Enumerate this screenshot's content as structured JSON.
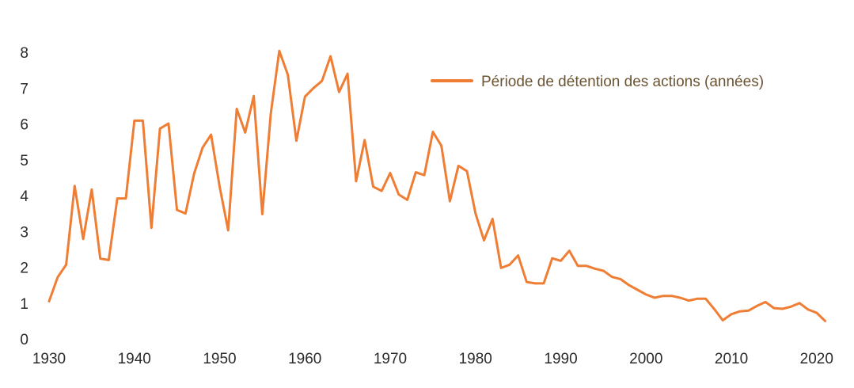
{
  "chart_data": {
    "type": "line",
    "title": "",
    "xlabel": "",
    "ylabel": "",
    "xlim": [
      1928,
      2023
    ],
    "ylim": [
      0,
      8.6
    ],
    "grid": false,
    "legend_position": "top-right",
    "x_ticks": [
      "1930",
      "1940",
      "1950",
      "1960",
      "1970",
      "1980",
      "1990",
      "2000",
      "2010",
      "2020"
    ],
    "y_ticks": [
      "0",
      "1",
      "2",
      "3",
      "4",
      "5",
      "6",
      "7",
      "8"
    ],
    "series": [
      {
        "name": "Période de détention des actions (années)",
        "color": "#ef7d34",
        "x": [
          1930,
          1931,
          1932,
          1933,
          1934,
          1935,
          1936,
          1937,
          1938,
          1939,
          1940,
          1941,
          1942,
          1943,
          1944,
          1945,
          1946,
          1947,
          1948,
          1949,
          1950,
          1951,
          1952,
          1953,
          1954,
          1955,
          1956,
          1957,
          1958,
          1959,
          1960,
          1961,
          1962,
          1963,
          1964,
          1965,
          1966,
          1967,
          1968,
          1969,
          1970,
          1971,
          1972,
          1973,
          1974,
          1975,
          1976,
          1977,
          1978,
          1979,
          1980,
          1981,
          1982,
          1983,
          1984,
          1985,
          1986,
          1987,
          1988,
          1989,
          1990,
          1991,
          1992,
          1993,
          1994,
          1995,
          1996,
          1997,
          1998,
          1999,
          2000,
          2001,
          2002,
          2003,
          2004,
          2005,
          2006,
          2007,
          2008,
          2009,
          2010,
          2011,
          2012,
          2013,
          2014,
          2015,
          2016,
          2017,
          2018,
          2019,
          2020,
          2021
        ],
        "values": [
          1.05,
          1.72,
          2.07,
          4.27,
          2.79,
          4.17,
          2.24,
          2.2,
          3.92,
          3.92,
          6.09,
          6.09,
          3.1,
          5.87,
          6.01,
          3.6,
          3.5,
          4.61,
          5.34,
          5.7,
          4.25,
          3.03,
          6.42,
          5.76,
          6.78,
          3.48,
          6.3,
          8.04,
          7.37,
          5.53,
          6.76,
          7.0,
          7.2,
          7.89,
          6.89,
          7.4,
          4.4,
          5.55,
          4.25,
          4.13,
          4.63,
          4.03,
          3.88,
          4.65,
          4.57,
          5.78,
          5.39,
          3.84,
          4.83,
          4.68,
          3.5,
          2.75,
          3.35,
          1.98,
          2.07,
          2.33,
          1.59,
          1.55,
          1.55,
          2.25,
          2.18,
          2.46,
          2.04,
          2.04,
          1.96,
          1.9,
          1.73,
          1.67,
          1.5,
          1.37,
          1.24,
          1.15,
          1.2,
          1.2,
          1.15,
          1.07,
          1.12,
          1.12,
          0.83,
          0.52,
          0.69,
          0.77,
          0.79,
          0.92,
          1.03,
          0.86,
          0.84,
          0.9,
          1.0,
          0.82,
          0.73,
          0.5
        ]
      }
    ]
  }
}
